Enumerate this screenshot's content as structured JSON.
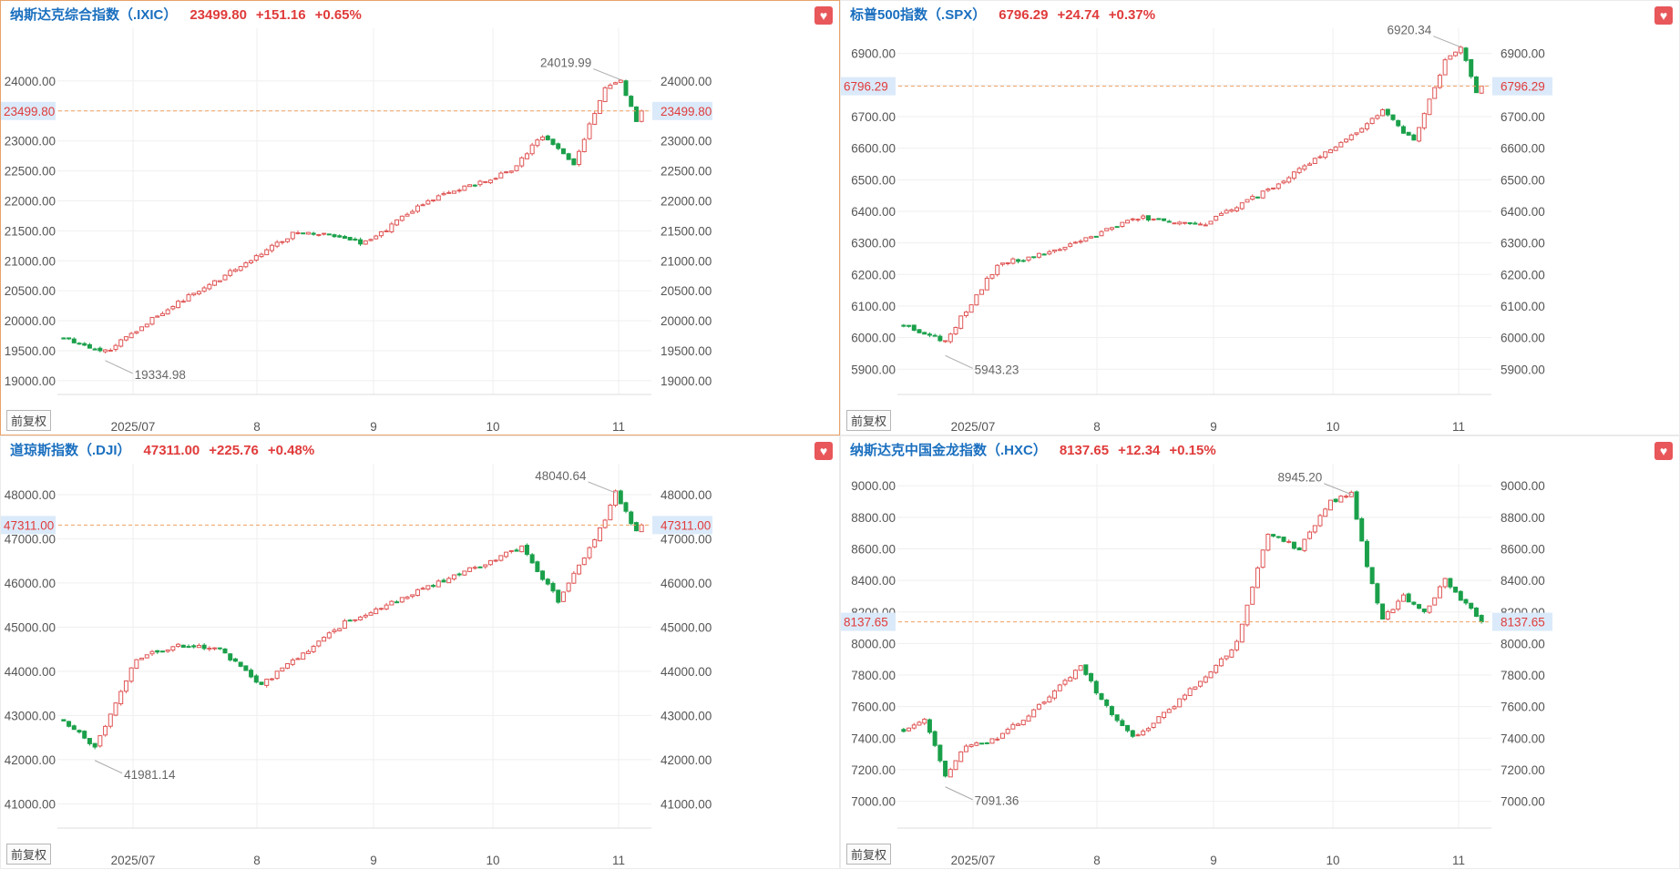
{
  "colors": {
    "up": "#e05555",
    "down": "#1aa04a",
    "title": "#1a6fbf",
    "price": "#e03b3b",
    "current_line": "#f0a060",
    "fav": "#e8575a"
  },
  "adj_label": "前复权",
  "fav_icon": "heart-icon",
  "chart_data": [
    {
      "type": "candlestick",
      "title": {
        "name": "纳斯达克综合指数（.IXIC）",
        "value": "23499.80",
        "change": "+151.16",
        "pct": "+0.65%"
      },
      "current_price": 23499.8,
      "current_label": "23499.80",
      "y_ticks": [
        24000,
        23500,
        23000,
        22500,
        22000,
        21500,
        21000,
        20500,
        20000,
        19500,
        19000
      ],
      "y_labels": [
        "24000.00",
        "23500.00",
        "23000.00",
        "22500.00",
        "22000.00",
        "21500.00",
        "21000.00",
        "20500.00",
        "20000.00",
        "19500.00",
        "19000.00"
      ],
      "ylim": [
        18770,
        24880
      ],
      "x_labels": [
        "2025/07",
        "8",
        "9",
        "10",
        "11"
      ],
      "high_label": "24019.99",
      "high_value": 24019.99,
      "low_label": "19334.98",
      "low_value": 19334.98,
      "n": 112,
      "start": 19720,
      "end": 23499.8,
      "seed": 11,
      "anchors": [
        [
          0,
          19720
        ],
        [
          8,
          19480
        ],
        [
          18,
          20100
        ],
        [
          30,
          20700
        ],
        [
          45,
          21500
        ],
        [
          58,
          21300
        ],
        [
          70,
          22000
        ],
        [
          86,
          22500
        ],
        [
          92,
          23100
        ],
        [
          98,
          22600
        ],
        [
          104,
          23900
        ],
        [
          107,
          24019
        ],
        [
          110,
          23350
        ],
        [
          111,
          23499.8
        ]
      ]
    },
    {
      "type": "candlestick",
      "title": {
        "name": "标普500指数（.SPX）",
        "value": "6796.29",
        "change": "+24.74",
        "pct": "+0.37%"
      },
      "current_price": 6796.29,
      "current_label": "6796.29",
      "y_ticks": [
        6900,
        6800,
        6700,
        6600,
        6500,
        6400,
        6300,
        6200,
        6100,
        6000,
        5900
      ],
      "y_labels": [
        "6900.00",
        "6800.00",
        "6700.00",
        "6600.00",
        "6500.00",
        "6400.00",
        "6300.00",
        "6200.00",
        "6100.00",
        "6000.00",
        "5900.00"
      ],
      "ylim": [
        5820,
        6980
      ],
      "x_labels": [
        "2025/07",
        "8",
        "9",
        "10",
        "11"
      ],
      "high_label": "6920.34",
      "high_value": 6920.34,
      "low_label": "5943.23",
      "low_value": 5943.23,
      "n": 112,
      "start": 6040,
      "end": 6796.29,
      "seed": 23,
      "anchors": [
        [
          0,
          6040
        ],
        [
          8,
          5990
        ],
        [
          18,
          6230
        ],
        [
          30,
          6280
        ],
        [
          45,
          6380
        ],
        [
          58,
          6360
        ],
        [
          70,
          6470
        ],
        [
          86,
          6640
        ],
        [
          92,
          6720
        ],
        [
          98,
          6620
        ],
        [
          104,
          6880
        ],
        [
          107,
          6920
        ],
        [
          110,
          6780
        ],
        [
          111,
          6796.29
        ]
      ]
    },
    {
      "type": "candlestick",
      "title": {
        "name": "道琼斯指数（.DJI）",
        "value": "47311.00",
        "change": "+225.76",
        "pct": "+0.48%"
      },
      "current_price": 47311.0,
      "current_label": "47311.00",
      "y_ticks": [
        48000,
        47000,
        46000,
        45000,
        44000,
        43000,
        42000,
        41000
      ],
      "y_labels": [
        "48000.00",
        "47000.00",
        "46000.00",
        "45000.00",
        "44000.00",
        "43000.00",
        "42000.00",
        "41000.00"
      ],
      "ylim": [
        40450,
        48700
      ],
      "x_labels": [
        "2025/07",
        "8",
        "9",
        "10",
        "11"
      ],
      "high_label": "48040.64",
      "high_value": 48040.64,
      "low_label": "41981.14",
      "low_value": 41981.14,
      "n": 112,
      "start": 42900,
      "end": 47311,
      "seed": 37,
      "anchors": [
        [
          0,
          42900
        ],
        [
          6,
          42300
        ],
        [
          14,
          44300
        ],
        [
          22,
          44600
        ],
        [
          30,
          44500
        ],
        [
          38,
          43700
        ],
        [
          46,
          44400
        ],
        [
          54,
          45100
        ],
        [
          64,
          45600
        ],
        [
          76,
          46200
        ],
        [
          88,
          46800
        ],
        [
          95,
          45600
        ],
        [
          104,
          47400
        ],
        [
          106,
          48040
        ],
        [
          110,
          47150
        ],
        [
          111,
          47311
        ]
      ]
    },
    {
      "type": "candlestick",
      "title": {
        "name": "纳斯达克中国金龙指数（.HXC）",
        "value": "8137.65",
        "change": "+12.34",
        "pct": "+0.15%"
      },
      "current_price": 8137.65,
      "current_label": "8137.65",
      "y_ticks": [
        9000,
        8800,
        8600,
        8400,
        8200,
        8000,
        7800,
        7600,
        7400,
        7200,
        7000
      ],
      "y_labels": [
        "9000.00",
        "8800.00",
        "8600.00",
        "8400.00",
        "8200.00",
        "8000.00",
        "7800.00",
        "7600.00",
        "7400.00",
        "7200.00",
        "7000.00"
      ],
      "ylim": [
        6830,
        9140
      ],
      "x_labels": [
        "2025/07",
        "8",
        "9",
        "10",
        "11"
      ],
      "high_label": "8945.20",
      "high_value": 8945.2,
      "low_label": "7091.36",
      "low_value": 7091.36,
      "n": 112,
      "start": 7450,
      "end": 8137.65,
      "seed": 51,
      "anchors": [
        [
          0,
          7450
        ],
        [
          4,
          7520
        ],
        [
          8,
          7160
        ],
        [
          12,
          7350
        ],
        [
          18,
          7400
        ],
        [
          26,
          7600
        ],
        [
          34,
          7850
        ],
        [
          40,
          7550
        ],
        [
          44,
          7400
        ],
        [
          50,
          7550
        ],
        [
          58,
          7800
        ],
        [
          64,
          8000
        ],
        [
          70,
          8700
        ],
        [
          76,
          8600
        ],
        [
          82,
          8900
        ],
        [
          86,
          8945
        ],
        [
          89,
          8500
        ],
        [
          92,
          8150
        ],
        [
          96,
          8300
        ],
        [
          100,
          8200
        ],
        [
          104,
          8400
        ],
        [
          108,
          8250
        ],
        [
          111,
          8137.65
        ]
      ]
    }
  ]
}
